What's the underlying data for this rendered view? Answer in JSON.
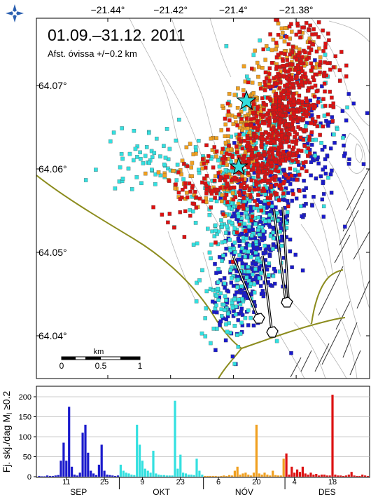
{
  "map": {
    "title": "01.09.–31.12. 2011",
    "subtitle": "Afst. óvissa +/−0.2 km",
    "lon_ticks": [
      {
        "value": -21.44,
        "label": "−21.44°"
      },
      {
        "value": -21.42,
        "label": "−21.42°"
      },
      {
        "value": -21.4,
        "label": "−21.4°"
      },
      {
        "value": -21.38,
        "label": "−21.38°"
      }
    ],
    "lat_ticks": [
      {
        "value": 64.07,
        "label": "64.07°"
      },
      {
        "value": 64.06,
        "label": "64.06°"
      },
      {
        "value": 64.05,
        "label": "64.05°"
      },
      {
        "value": 64.04,
        "label": "64.04°"
      }
    ],
    "scalebar": {
      "unit": "km",
      "labels": [
        "0",
        "0.5",
        "1"
      ]
    },
    "colors": {
      "sep": "#1a1acc",
      "okt": "#33e0e0",
      "nov": "#f0a020",
      "des": "#dd1111",
      "road": "#8c8c1e",
      "contour": "#aaaaaa",
      "fault": "#333333",
      "star": "#33dddd"
    },
    "logo": "imo-star-logo"
  },
  "histogram": {
    "ylabel": "Fj. skj./dag M",
    "ylabel_sub": "l",
    "ylabel_tail": " ≥0.2",
    "y_ticks": [
      0,
      50,
      100,
      150,
      200
    ],
    "day_ticks": [
      {
        "label": "11",
        "day": 11
      },
      {
        "label": "25",
        "day": 25
      },
      {
        "label": "9",
        "day": 39
      },
      {
        "label": "23",
        "day": 53
      },
      {
        "label": "6",
        "day": 67
      },
      {
        "label": "20",
        "day": 81
      },
      {
        "label": "4",
        "day": 95
      },
      {
        "label": "18",
        "day": 109
      }
    ],
    "months": [
      {
        "label": "SEP",
        "center_day": 15.5
      },
      {
        "label": "OKT",
        "center_day": 46
      },
      {
        "label": "NÓV",
        "center_day": 76.5
      },
      {
        "label": "DES",
        "center_day": 107
      }
    ]
  },
  "chart_data": {
    "type": "bar",
    "ylim": [
      0,
      215
    ],
    "x_unit": "day of period (1 = 1 Sep 2011)",
    "series": [
      {
        "month": "SEP",
        "start_day": 1,
        "values": [
          2,
          1,
          1,
          3,
          2,
          2,
          3,
          4,
          40,
          85,
          40,
          175,
          25,
          5,
          3,
          10,
          110,
          130,
          60,
          15,
          8,
          4,
          30,
          80,
          15,
          5,
          4,
          3,
          2,
          3
        ]
      },
      {
        "month": "OKT",
        "start_day": 31,
        "values": [
          30,
          15,
          10,
          8,
          5,
          4,
          130,
          80,
          40,
          20,
          15,
          10,
          65,
          8,
          5,
          4,
          4,
          3,
          3,
          3,
          190,
          20,
          55,
          10,
          8,
          5,
          5,
          4,
          45,
          15,
          5
        ]
      },
      {
        "month": "NOV",
        "start_day": 62,
        "values": [
          2,
          2,
          2,
          2,
          2,
          1,
          2,
          3,
          2,
          4,
          3,
          15,
          25,
          5,
          8,
          10,
          5,
          3,
          10,
          130,
          8,
          5,
          10,
          5,
          3,
          15,
          4,
          3,
          3,
          45
        ]
      },
      {
        "month": "DES",
        "start_day": 92,
        "values": [
          58,
          5,
          25,
          10,
          18,
          12,
          25,
          8,
          5,
          10,
          5,
          7,
          3,
          5,
          5,
          3,
          3,
          205,
          5,
          3,
          3,
          2,
          3,
          5,
          12,
          3,
          2,
          2,
          5,
          3,
          2
        ]
      }
    ]
  }
}
